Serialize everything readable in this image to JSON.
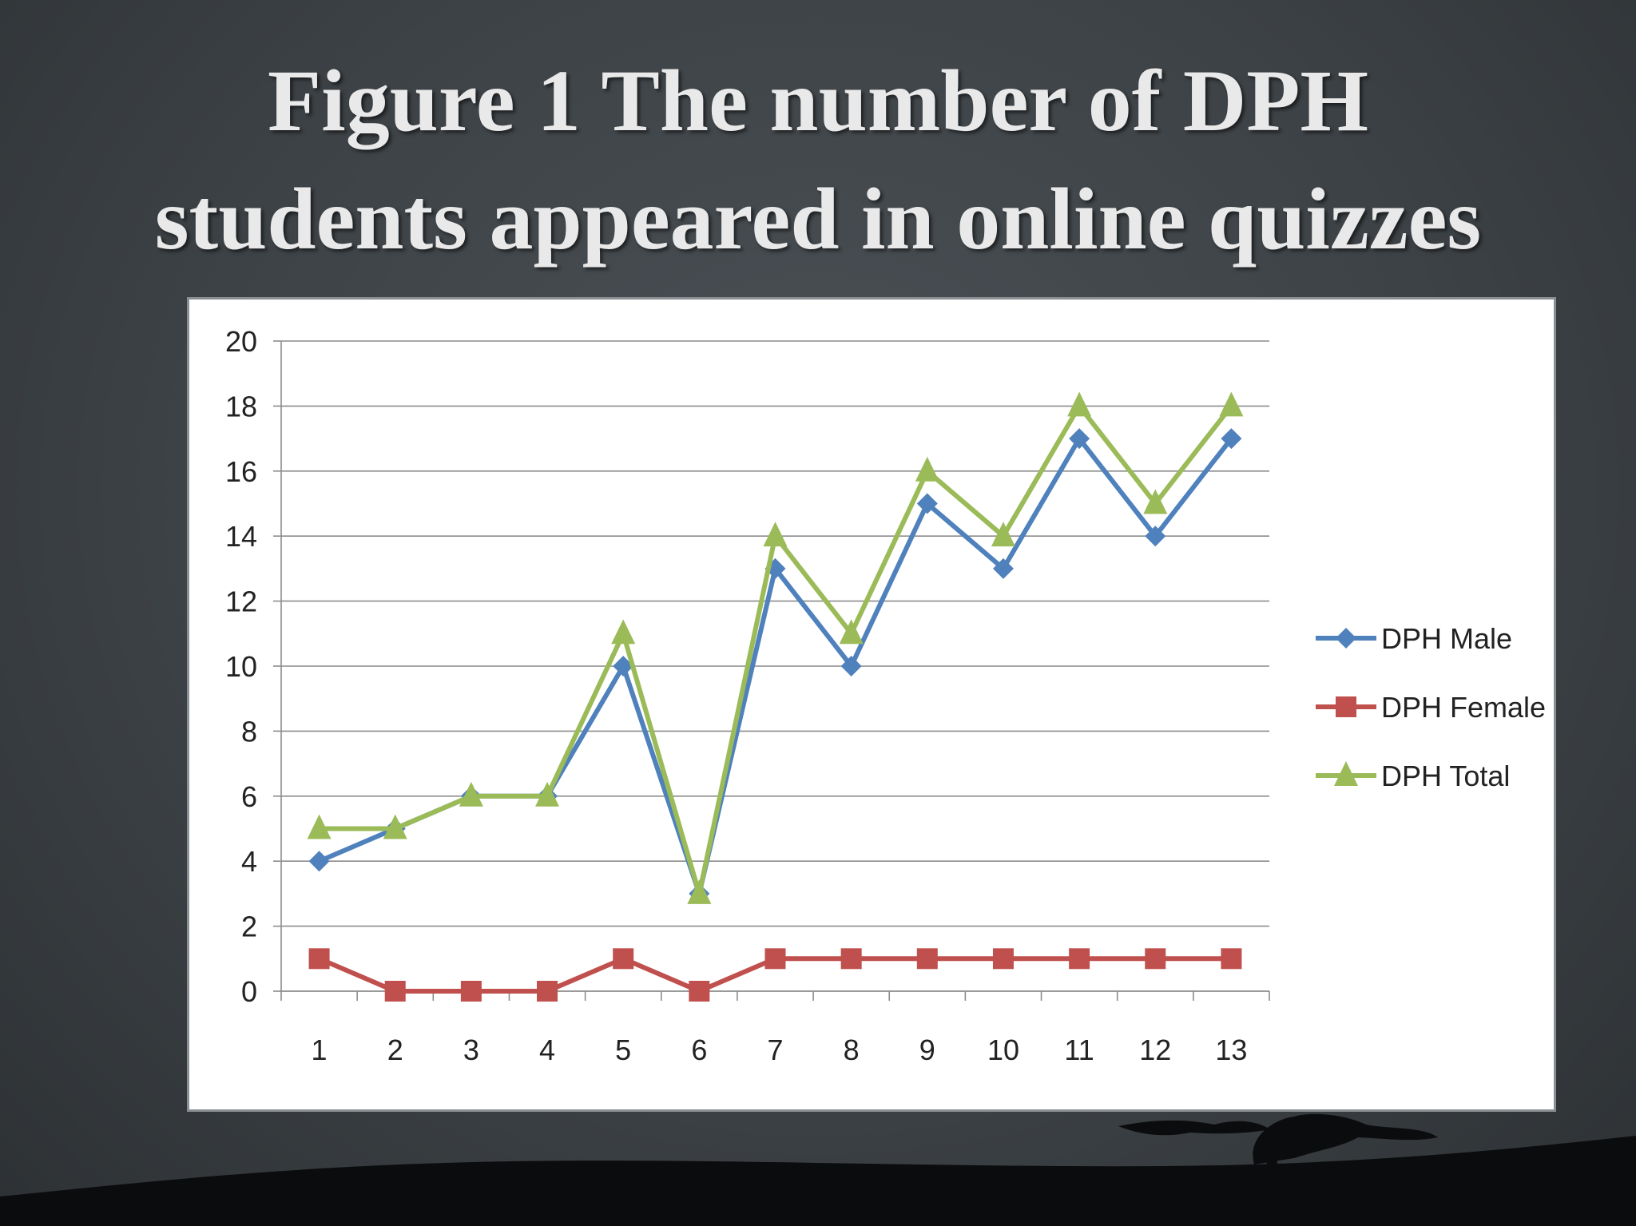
{
  "slide": {
    "title_line1": "Figure 1 The number of DPH",
    "title_line2": "students appeared in online quizzes"
  },
  "chart_data": {
    "type": "line",
    "title": "",
    "xlabel": "",
    "ylabel": "",
    "categories": [
      "1",
      "2",
      "3",
      "4",
      "5",
      "6",
      "7",
      "8",
      "9",
      "10",
      "11",
      "12",
      "13"
    ],
    "ylim": [
      0,
      20
    ],
    "yticks": [
      0,
      2,
      4,
      6,
      8,
      10,
      12,
      14,
      16,
      18,
      20
    ],
    "grid": true,
    "legend_position": "right",
    "series": [
      {
        "name": "DPH Male",
        "color": "#4f81bd",
        "marker": "diamond",
        "values": [
          4,
          5,
          6,
          6,
          10,
          3,
          13,
          10,
          15,
          13,
          17,
          14,
          17
        ]
      },
      {
        "name": "DPH Female",
        "color": "#c0504d",
        "marker": "square",
        "values": [
          1,
          0,
          0,
          0,
          1,
          0,
          1,
          1,
          1,
          1,
          1,
          1,
          1
        ]
      },
      {
        "name": "DPH Total",
        "color": "#9bbb59",
        "marker": "triangle",
        "values": [
          5,
          5,
          6,
          6,
          11,
          3,
          14,
          11,
          16,
          14,
          18,
          15,
          18
        ]
      }
    ]
  }
}
